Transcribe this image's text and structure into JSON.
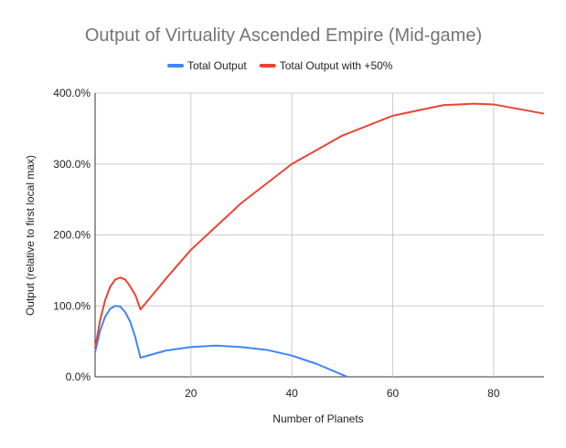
{
  "chart_data": {
    "type": "line",
    "title": "Output of Virtuality Ascended Empire (Mid-game)",
    "xlabel": "Number of Planets",
    "ylabel": "Output (relative to first local max)",
    "xlim": [
      1,
      90
    ],
    "ylim": [
      0,
      400
    ],
    "xticks": [
      20,
      40,
      60,
      80
    ],
    "yticks": [
      0,
      100,
      200,
      300,
      400
    ],
    "ytick_labels": [
      "0.0%",
      "100.0%",
      "200.0%",
      "300.0%",
      "400.0%"
    ],
    "grid": true,
    "legend": "top",
    "series": [
      {
        "name": "Total Output",
        "color": "#4285f4",
        "x": [
          1,
          2,
          3,
          4,
          5,
          6,
          7,
          8,
          9,
          10,
          15,
          20,
          25,
          30,
          35,
          40,
          45,
          50,
          51
        ],
        "y": [
          35,
          65,
          85,
          96,
          100,
          99,
          91,
          77,
          55,
          27,
          37,
          42,
          44,
          42,
          38,
          30,
          18,
          3,
          0
        ]
      },
      {
        "name": "Total Output with +50%",
        "color": "#ea4335",
        "x": [
          1,
          2,
          3,
          4,
          5,
          6,
          7,
          8,
          9,
          10,
          15,
          20,
          30,
          40,
          50,
          60,
          70,
          76,
          80,
          90
        ],
        "y": [
          40,
          80,
          108,
          127,
          137,
          140,
          137,
          127,
          115,
          95,
          138,
          179,
          245,
          300,
          340,
          368,
          383,
          385,
          384,
          371
        ]
      }
    ]
  }
}
